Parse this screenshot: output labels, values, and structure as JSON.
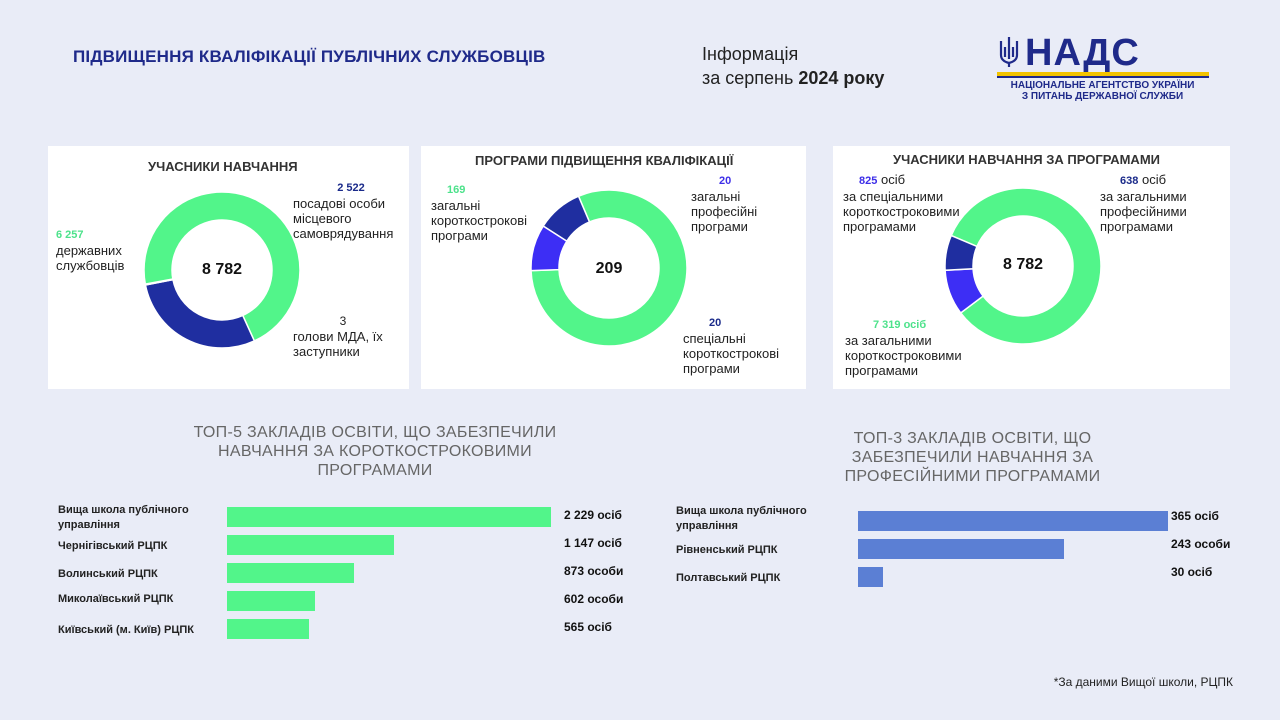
{
  "header": {
    "title": "ПІДВИЩЕННЯ КВАЛІФІКАЦІЇ ПУБЛІЧНИХ СЛУЖБОВЦІВ",
    "info_line1": "Інформація",
    "info_line2_prefix": "за серпень ",
    "info_line2_bold": "2024 року",
    "logo_text": "НАДС",
    "logo_sub1": "НАЦІОНАЛЬНЕ АГЕНТСТВО УКРАЇНИ",
    "logo_sub2": "З ПИТАНЬ ДЕРЖАВНОЇ СЛУЖБИ"
  },
  "colors": {
    "green": "#52f58a",
    "navy": "#1f2ea0",
    "violet": "#3d2ef5",
    "blue_bar": "#5b7fd4",
    "title_navy": "#1f2a8a"
  },
  "labels": {
    "c1_green_num": "6 257",
    "c1_green_text": "державних службовців",
    "c1_navy_num": "2 522",
    "c1_navy_text": "посадові особи місцевого самоврядування",
    "c1_small_num": "3",
    "c1_small_text": "голови МДА, їх заступники",
    "c2_green_num": "169",
    "c2_green_text": "загальні короткострокові програми",
    "c2_violet_num": "20",
    "c2_violet_text": "загальні професійні програми",
    "c2_navy_num": "20",
    "c2_navy_text": "спеціальні короткострокові програми",
    "c3_violet_num": "825",
    "c3_violet_suffix": " осіб",
    "c3_violet_text": "за спеціальними короткостроковими програмами",
    "c3_navy_num": "638",
    "c3_navy_suffix": " осіб",
    "c3_navy_text": "за загальними професійними програмами",
    "c3_green_num": "7 319 осіб",
    "c3_green_text": "за загальними короткостроковими програмами"
  },
  "chart_data": [
    {
      "type": "pie",
      "title": "УЧАСНИКИ НАВЧАННЯ",
      "center_label": "8 782",
      "categories": [
        "державних службовців",
        "посадові особи місцевого самоврядування",
        "голови МДА, їх заступники"
      ],
      "values": [
        6257,
        2522,
        3
      ],
      "colors": [
        "#52f58a",
        "#1f2ea0",
        "#5b7fd4"
      ]
    },
    {
      "type": "pie",
      "title": "ПРОГРАМИ ПІДВИЩЕННЯ КВАЛІФІКАЦІЇ",
      "center_label": "209",
      "categories": [
        "загальні короткострокові програми",
        "загальні професійні програми",
        "спеціальні короткострокові програми"
      ],
      "values": [
        169,
        20,
        20
      ],
      "colors": [
        "#52f58a",
        "#3d2ef5",
        "#1f2ea0"
      ]
    },
    {
      "type": "pie",
      "title": "УЧАСНИКИ НАВЧАННЯ ЗА ПРОГРАМАМИ",
      "center_label": "8 782",
      "categories": [
        "за загальними короткостроковими програмами",
        "за спеціальними короткостроковими програмами",
        "за загальними професійними програмами"
      ],
      "values": [
        7319,
        825,
        638
      ],
      "colors": [
        "#52f58a",
        "#3d2ef5",
        "#1f2ea0"
      ]
    },
    {
      "type": "bar",
      "title": "ТОП-5 ЗАКЛАДІВ ОСВІТИ, ЩО ЗАБЕЗПЕЧИЛИ НАВЧАННЯ ЗА КОРОТКОСТРОКОВИМИ ПРОГРАМАМИ",
      "categories": [
        "Вища школа публічного управління",
        "Чернігівський РЦПК",
        "Волинський РЦПК",
        "Миколаївський РЦПК",
        "Київський (м. Київ) РЦПК"
      ],
      "values": [
        2229,
        1147,
        873,
        602,
        565
      ],
      "value_labels": [
        "2 229 осіб",
        "1 147 осіб",
        "873 особи",
        "602 особи",
        "565 осіб"
      ],
      "color": "#52f58a"
    },
    {
      "type": "bar",
      "title": "ТОП-3 ЗАКЛАДІВ ОСВІТИ, ЩО ЗАБЕЗПЕЧИЛИ НАВЧАННЯ ЗА ПРОФЕСІЙНИМИ ПРОГРАМАМИ",
      "categories": [
        "Вища школа публічного управління",
        "Рівненський РЦПК",
        "Полтавський РЦПК"
      ],
      "values": [
        365,
        243,
        30
      ],
      "value_labels": [
        "365 осіб",
        "243 особи",
        "30 осіб"
      ],
      "color": "#5b7fd4"
    }
  ],
  "footnote": "*За даними Вищої школи, РЦПК"
}
